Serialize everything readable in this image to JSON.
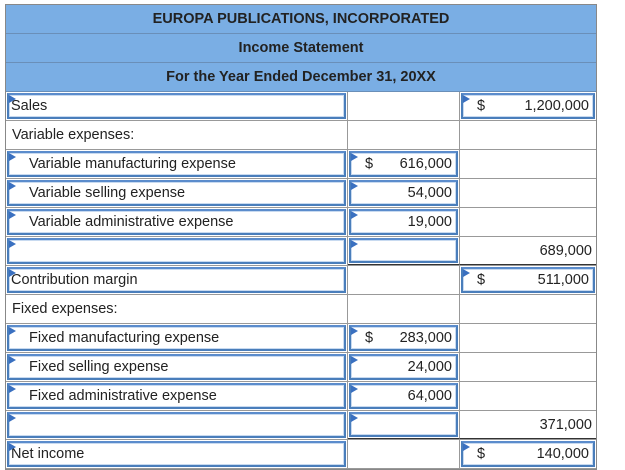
{
  "header": {
    "company": "EUROPA PUBLICATIONS, INCORPORATED",
    "statement": "Income Statement",
    "period": "For the Year Ended December 31, 20XX"
  },
  "rows": [
    {
      "label": "Sales",
      "mid": "",
      "mid_dollar": "",
      "right": "1,200,000",
      "right_dollar": "$"
    },
    {
      "label": "Variable expenses:",
      "mid": "",
      "mid_dollar": "",
      "right": "",
      "right_dollar": ""
    },
    {
      "label": "Variable manufacturing expense",
      "mid": "616,000",
      "mid_dollar": "$",
      "right": "",
      "right_dollar": ""
    },
    {
      "label": "Variable selling expense",
      "mid": "54,000",
      "mid_dollar": "",
      "right": "",
      "right_dollar": ""
    },
    {
      "label": "Variable administrative expense",
      "mid": "19,000",
      "mid_dollar": "",
      "right": "",
      "right_dollar": ""
    },
    {
      "label": "",
      "mid": "",
      "mid_dollar": "",
      "right": "689,000",
      "right_dollar": ""
    },
    {
      "label": "Contribution margin",
      "mid": "",
      "mid_dollar": "",
      "right": "511,000",
      "right_dollar": "$"
    },
    {
      "label": "Fixed expenses:",
      "mid": "",
      "mid_dollar": "",
      "right": "",
      "right_dollar": ""
    },
    {
      "label": "Fixed manufacturing expense",
      "mid": "283,000",
      "mid_dollar": "$",
      "right": "",
      "right_dollar": ""
    },
    {
      "label": "Fixed selling expense",
      "mid": "24,000",
      "mid_dollar": "",
      "right": "",
      "right_dollar": ""
    },
    {
      "label": "Fixed administrative expense",
      "mid": "64,000",
      "mid_dollar": "",
      "right": "",
      "right_dollar": ""
    },
    {
      "label": "",
      "mid": "",
      "mid_dollar": "",
      "right": "371,000",
      "right_dollar": ""
    },
    {
      "label": "Net income",
      "mid": "",
      "mid_dollar": "",
      "right": "140,000",
      "right_dollar": "$"
    }
  ]
}
